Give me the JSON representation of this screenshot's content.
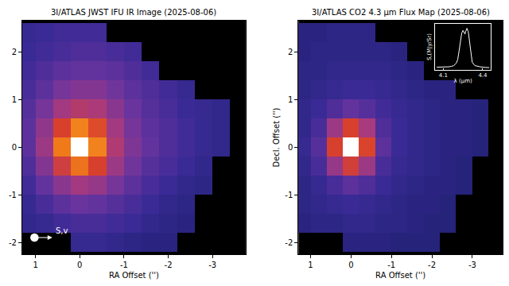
{
  "chart_data": [
    {
      "type": "heatmap",
      "title": "3I/ATLAS JWST IFU IR Image (2025-08-06)",
      "x_label": "RA Offset ('')",
      "x": [
        1.2,
        0.8,
        0.4,
        0,
        -0.4,
        -0.8,
        -1.2,
        -1.6,
        -2.0,
        -2.4,
        -2.8,
        -3.2,
        -3.6
      ],
      "y": [
        -2.0,
        -1.6,
        -1.2,
        -0.8,
        -0.4,
        0,
        0.4,
        0.8,
        1.2,
        1.6,
        2.0,
        2.4
      ],
      "cells": [
        [
          null,
          null,
          null,
          14,
          14,
          13,
          12,
          11,
          11,
          null,
          null,
          null,
          null
        ],
        [
          13,
          14,
          16,
          17,
          17,
          16,
          15,
          13,
          12,
          11,
          null,
          null,
          null
        ],
        [
          14,
          17,
          20,
          22,
          21,
          19,
          17,
          15,
          13,
          12,
          null,
          null,
          null
        ],
        [
          16,
          21,
          27,
          31,
          29,
          24,
          20,
          17,
          15,
          13,
          12,
          null,
          null
        ],
        [
          18,
          26,
          42,
          58,
          45,
          30,
          23,
          19,
          17,
          15,
          13,
          null,
          null
        ],
        [
          20,
          30,
          60,
          100,
          62,
          34,
          25,
          21,
          18,
          16,
          14,
          13,
          null
        ],
        [
          20,
          28,
          45,
          62,
          48,
          31,
          24,
          20,
          18,
          16,
          14,
          13,
          null
        ],
        [
          19,
          24,
          31,
          35,
          33,
          27,
          22,
          19,
          17,
          15,
          14,
          13,
          null
        ],
        [
          17,
          20,
          24,
          26,
          26,
          23,
          20,
          18,
          16,
          14,
          null,
          null,
          null
        ],
        [
          16,
          18,
          20,
          21,
          21,
          20,
          18,
          16,
          null,
          null,
          null,
          null,
          null
        ],
        [
          15,
          16,
          17,
          18,
          18,
          17,
          16,
          null,
          null,
          null,
          null,
          null,
          null
        ],
        [
          14,
          15,
          16,
          16,
          16,
          null,
          null,
          null,
          null,
          null,
          null,
          null,
          null
        ]
      ],
      "zlim": [
        0,
        100
      ],
      "xlim": [
        1.3,
        -3.75
      ],
      "ylim": [
        -2.25,
        2.65
      ],
      "xticks": [
        1,
        0,
        -1,
        -2,
        -3
      ],
      "yticks": [
        -2,
        -1,
        0,
        1,
        2
      ],
      "annotations": [
        {
          "text": "S,v",
          "x": 0.62,
          "y": -1.9
        }
      ]
    },
    {
      "type": "heatmap",
      "title": "3I/ATLAS CO2 4.3 µm Flux Map (2025-08-06)",
      "x_label": "RA Offset ('')",
      "y_label": "Decl. Offset ('')",
      "x": [
        1.2,
        0.8,
        0.4,
        0,
        -0.4,
        -0.8,
        -1.2,
        -1.6,
        -2.0,
        -2.4,
        -2.8,
        -3.2,
        -3.6
      ],
      "y": [
        -2.0,
        -1.6,
        -1.2,
        -0.8,
        -0.4,
        0,
        0.4,
        0.8,
        1.2,
        1.6,
        2.0,
        2.4
      ],
      "cells": [
        [
          null,
          null,
          null,
          11,
          11,
          11,
          10,
          10,
          10,
          null,
          null,
          null,
          null
        ],
        [
          11,
          12,
          12,
          13,
          13,
          12,
          12,
          11,
          10,
          10,
          null,
          null,
          null
        ],
        [
          12,
          13,
          14,
          15,
          14,
          13,
          12,
          11,
          11,
          10,
          null,
          null,
          null
        ],
        [
          12,
          14,
          17,
          20,
          18,
          15,
          13,
          12,
          11,
          11,
          10,
          null,
          null
        ],
        [
          13,
          17,
          29,
          43,
          30,
          17,
          14,
          13,
          12,
          11,
          10,
          null,
          null
        ],
        [
          14,
          19,
          45,
          100,
          46,
          20,
          15,
          13,
          12,
          11,
          11,
          10,
          null
        ],
        [
          13,
          17,
          30,
          45,
          32,
          18,
          15,
          13,
          12,
          11,
          11,
          10,
          null
        ],
        [
          13,
          15,
          18,
          21,
          19,
          16,
          14,
          13,
          12,
          11,
          11,
          10,
          null
        ],
        [
          12,
          13,
          14,
          15,
          15,
          14,
          13,
          12,
          11,
          11,
          null,
          null,
          null
        ],
        [
          12,
          12,
          13,
          13,
          13,
          13,
          12,
          11,
          null,
          null,
          null,
          null,
          null
        ],
        [
          11,
          12,
          12,
          12,
          12,
          12,
          11,
          null,
          null,
          null,
          null,
          null,
          null
        ],
        [
          11,
          11,
          12,
          12,
          12,
          null,
          null,
          null,
          null,
          null,
          null,
          null,
          null
        ]
      ],
      "zlim": [
        0,
        100
      ],
      "xlim": [
        1.3,
        -3.75
      ],
      "ylim": [
        -2.25,
        2.65
      ],
      "xticks": [
        1,
        0,
        -1,
        -2,
        -3
      ],
      "yticks": [
        -2,
        -1,
        0,
        1,
        2
      ]
    },
    {
      "type": "line",
      "x_label": "λ (µm)",
      "y_label": "S,(MJy/Sr)",
      "x": [
        4.05,
        4.08,
        4.1,
        4.12,
        4.14,
        4.16,
        4.18,
        4.2,
        4.21,
        4.22,
        4.23,
        4.24,
        4.25,
        4.26,
        4.265,
        4.27,
        4.28,
        4.29,
        4.3,
        4.31,
        4.32,
        4.34,
        4.36,
        4.38,
        4.4,
        4.42,
        4.45
      ],
      "values": [
        0.06,
        0.06,
        0.06,
        0.07,
        0.07,
        0.08,
        0.1,
        0.16,
        0.25,
        0.45,
        0.7,
        0.88,
        0.95,
        0.9,
        0.86,
        0.92,
        1.0,
        0.92,
        0.65,
        0.35,
        0.18,
        0.1,
        0.08,
        0.07,
        0.06,
        0.06,
        0.05
      ],
      "xlim": [
        4.04,
        4.46
      ],
      "ylim": [
        0,
        1.1
      ],
      "xticks": [
        4.1,
        4.4
      ],
      "tick_labels": "x",
      "color": "#ffffff"
    }
  ]
}
